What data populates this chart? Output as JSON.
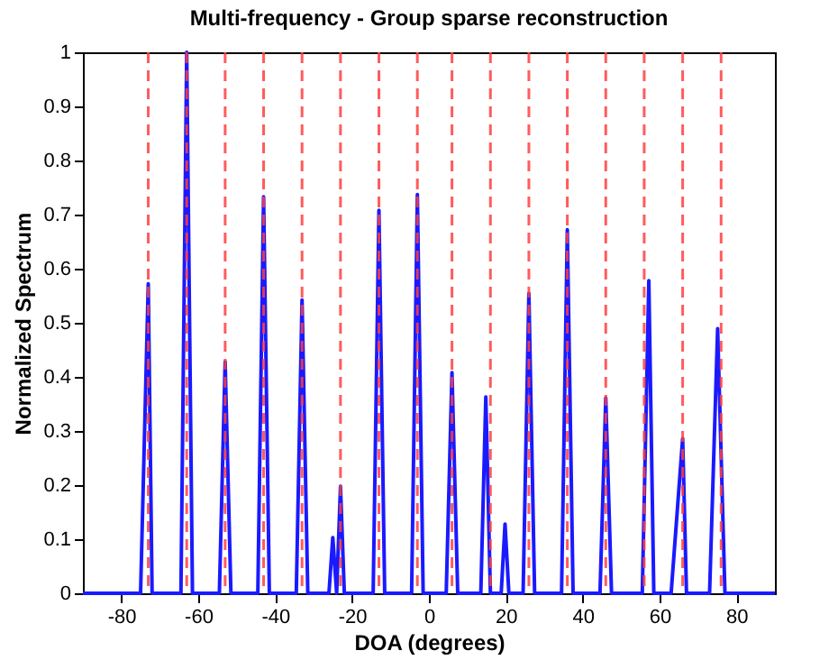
{
  "chart_data": {
    "type": "line",
    "title": "Multi-frequency - Group sparse reconstruction",
    "xlabel": "DOA (degrees)",
    "ylabel": "Normalized Spectrum",
    "xlim": [
      -90,
      90
    ],
    "ylim": [
      0,
      1
    ],
    "xticks": [
      -80,
      -60,
      -40,
      -20,
      0,
      20,
      40,
      60,
      80
    ],
    "yticks": [
      0,
      0.1,
      0.2,
      0.3,
      0.4,
      0.5,
      0.6,
      0.7,
      0.8,
      0.9,
      1
    ],
    "grid": false,
    "line_style": "solid",
    "marker": "none",
    "series": [
      {
        "color": "#1a1aff",
        "x": [
          -90,
          -75,
          -73,
          -72,
          -64.5,
          -63,
          -61.5,
          -54.5,
          -53,
          -51.5,
          -44.5,
          -43,
          -41.5,
          -34.5,
          -33,
          -31.5,
          -26,
          -25,
          -24,
          -23,
          -22,
          -14.5,
          -13,
          -11.5,
          -4.5,
          -3,
          -1.5,
          4.5,
          6,
          7.5,
          13.5,
          14.8,
          16,
          18.8,
          19.8,
          20.8,
          24.5,
          26,
          27.5,
          34.5,
          36,
          37.5,
          44.5,
          46,
          47.5,
          55.5,
          57.2,
          58.5,
          63,
          66,
          67,
          73,
          75.1,
          77,
          90
        ],
        "values": [
          0,
          0,
          0.572,
          0,
          0,
          1.0,
          0,
          0,
          0.428,
          0,
          0,
          0.733,
          0,
          0,
          0.542,
          0,
          0,
          0.103,
          0,
          0.198,
          0,
          0,
          0.708,
          0,
          0,
          0.737,
          0,
          0,
          0.408,
          0,
          0,
          0.363,
          0,
          0,
          0.128,
          0,
          0,
          0.554,
          0,
          0,
          0.672,
          0,
          0,
          0.361,
          0,
          0,
          0.578,
          0,
          0,
          0.286,
          0,
          0,
          0.489,
          0,
          0
        ]
      }
    ],
    "ref_lines": [
      {
        "axis": "x",
        "value": -73,
        "color": "#ff4040",
        "line_style": "dashed"
      },
      {
        "axis": "x",
        "value": -63,
        "color": "#ff4040",
        "line_style": "dashed"
      },
      {
        "axis": "x",
        "value": -53,
        "color": "#ff4040",
        "line_style": "dashed"
      },
      {
        "axis": "x",
        "value": -43,
        "color": "#ff4040",
        "line_style": "dashed"
      },
      {
        "axis": "x",
        "value": -33,
        "color": "#ff4040",
        "line_style": "dashed"
      },
      {
        "axis": "x",
        "value": -23,
        "color": "#ff4040",
        "line_style": "dashed"
      },
      {
        "axis": "x",
        "value": -13,
        "color": "#ff4040",
        "line_style": "dashed"
      },
      {
        "axis": "x",
        "value": -3,
        "color": "#ff4040",
        "line_style": "dashed"
      },
      {
        "axis": "x",
        "value": 6,
        "color": "#ff4040",
        "line_style": "dashed"
      },
      {
        "axis": "x",
        "value": 16,
        "color": "#ff4040",
        "line_style": "dashed"
      },
      {
        "axis": "x",
        "value": 26,
        "color": "#ff4040",
        "line_style": "dashed"
      },
      {
        "axis": "x",
        "value": 36,
        "color": "#ff4040",
        "line_style": "dashed"
      },
      {
        "axis": "x",
        "value": 46,
        "color": "#ff4040",
        "line_style": "dashed"
      },
      {
        "axis": "x",
        "value": 56,
        "color": "#ff4040",
        "line_style": "dashed"
      },
      {
        "axis": "x",
        "value": 66,
        "color": "#ff4040",
        "line_style": "dashed"
      },
      {
        "axis": "x",
        "value": 76,
        "color": "#ff4040",
        "line_style": "dashed"
      }
    ]
  }
}
